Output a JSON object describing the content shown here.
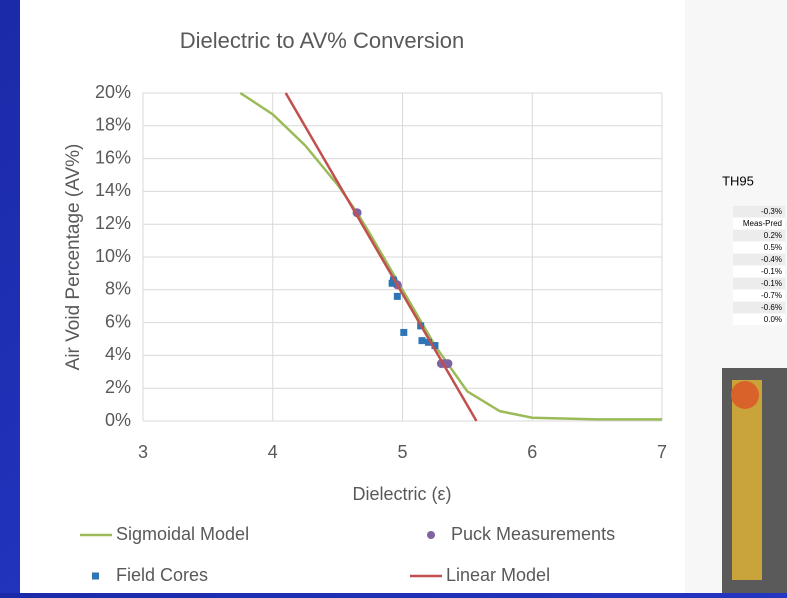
{
  "chart_data": {
    "type": "line",
    "title": "Dielectric to AV% Conversion",
    "x_label": "Dielectric (ε)",
    "y_label": "Air Void Percentage (AV%)",
    "xlim": [
      3,
      7
    ],
    "xticks": [
      3,
      4,
      5,
      6,
      7
    ],
    "ylim": [
      0,
      20
    ],
    "yticks": [
      {
        "value": 0,
        "label": "0%"
      },
      {
        "value": 2,
        "label": "2%"
      },
      {
        "value": 4,
        "label": "4%"
      },
      {
        "value": 6,
        "label": "6%"
      },
      {
        "value": 8,
        "label": "8%"
      },
      {
        "value": 10,
        "label": "10%"
      },
      {
        "value": 12,
        "label": "12%"
      },
      {
        "value": 14,
        "label": "14%"
      },
      {
        "value": 16,
        "label": "16%"
      },
      {
        "value": 18,
        "label": "18%"
      },
      {
        "value": 20,
        "label": "20%"
      }
    ],
    "grid": true,
    "series": [
      {
        "name": "Sigmoidal Model",
        "type": "line",
        "color": "#9bbb59",
        "x": [
          3.75,
          4.0,
          4.25,
          4.5,
          4.65,
          4.75,
          5.0,
          5.25,
          5.5,
          5.75,
          6.0,
          6.5,
          7.0
        ],
        "values": [
          20,
          18.7,
          16.8,
          14.4,
          12.7,
          11.4,
          8.0,
          4.6,
          1.8,
          0.6,
          0.2,
          0.1,
          0.1
        ]
      },
      {
        "name": "Puck Measurements",
        "type": "scatter",
        "marker": "circle",
        "color": "#8064a2",
        "x": [
          4.65,
          4.96,
          5.3,
          5.33,
          5.35
        ],
        "values": [
          12.7,
          8.3,
          3.5,
          3.5,
          3.5
        ]
      },
      {
        "name": "Field Cores",
        "type": "scatter",
        "marker": "square",
        "color": "#2e75b6",
        "x": [
          4.92,
          4.93,
          4.96,
          5.01,
          5.14,
          5.15,
          5.2,
          5.25
        ],
        "values": [
          8.4,
          8.6,
          7.6,
          5.4,
          5.8,
          4.9,
          4.8,
          4.6
        ]
      },
      {
        "name": "Linear Model",
        "type": "line",
        "color": "#c0504d",
        "x": [
          4.1,
          5.57
        ],
        "values": [
          20,
          0
        ]
      }
    ]
  },
  "side_panel": {
    "title": "TH95",
    "cells": [
      "-0.3%",
      "Meas-Pred",
      "0.2%",
      "0.5%",
      "-0.4%",
      "-0.1%",
      "-0.1%",
      "-0.7%",
      "-0.6%",
      "0.0%"
    ]
  }
}
